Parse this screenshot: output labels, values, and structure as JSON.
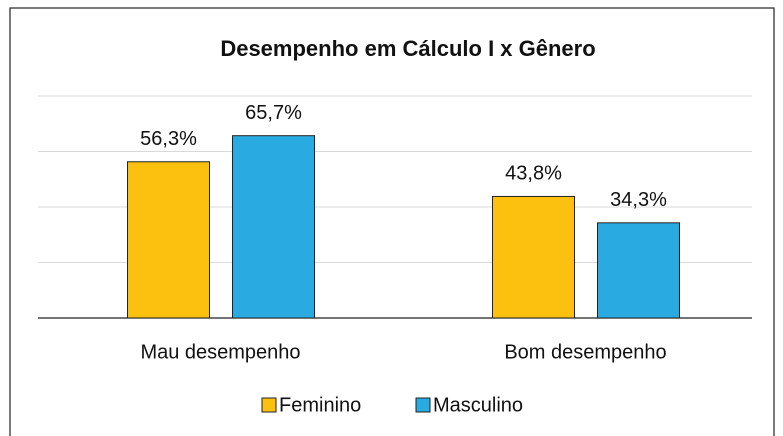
{
  "chart_data": {
    "type": "bar",
    "title": "Desempenho em Cálculo I x Gênero",
    "categories": [
      "Mau desempenho",
      "Bom desempenho"
    ],
    "series": [
      {
        "name": "Feminino",
        "color": "#fcc00f",
        "values": [
          56.3,
          43.8
        ],
        "value_labels": [
          "56,3%",
          "43,8%"
        ]
      },
      {
        "name": "Masculino",
        "color": "#29abe2",
        "values": [
          65.7,
          34.3
        ],
        "value_labels": [
          "65,7%",
          "34,3%"
        ]
      }
    ],
    "ylim": [
      0,
      80
    ],
    "yticks": [
      0,
      20,
      40,
      60,
      80
    ],
    "grid": true,
    "legend": "bottom"
  }
}
